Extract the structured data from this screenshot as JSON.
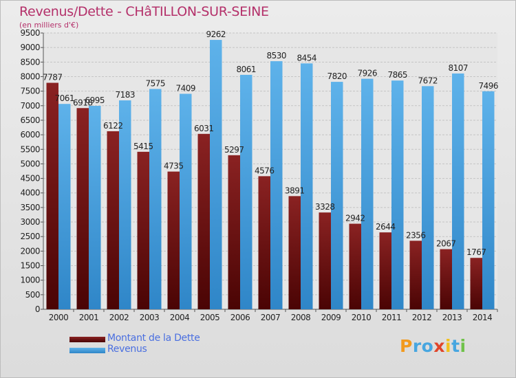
{
  "title": "Revenus/Dette - CHâTILLON-SUR-SEINE",
  "subtitle": "(en milliers d'€)",
  "legend": [
    {
      "label": "Montant de la Dette",
      "color": "#7a1414"
    },
    {
      "label": "Revenus",
      "color": "#4ea3e2"
    }
  ],
  "logo": {
    "text": "Proxiti",
    "letters": [
      "P",
      "r",
      "o",
      "x",
      "i",
      "t",
      "i"
    ],
    "colors": [
      "#f29a1e",
      "#47a6e0",
      "#47a6e0",
      "#e0452a",
      "#f2c01e",
      "#47a6e0",
      "#6fc24a"
    ]
  },
  "chart_data": {
    "type": "bar",
    "categories": [
      "2000",
      "2001",
      "2002",
      "2003",
      "2004",
      "2005",
      "2006",
      "2007",
      "2008",
      "2009",
      "2010",
      "2011",
      "2012",
      "2013",
      "2014"
    ],
    "series": [
      {
        "name": "Montant de la Dette",
        "values": [
          7787,
          6918,
          6122,
          5415,
          4735,
          6031,
          5297,
          4576,
          3891,
          3328,
          2942,
          2644,
          2356,
          2067,
          1767
        ],
        "labels": [
          "7787",
          "6918",
          "6122",
          "5415",
          "4735",
          "6031",
          "5297",
          "4576",
          "3891",
          "3328",
          "2942",
          "2644",
          "2356",
          "2067",
          "1767"
        ]
      },
      {
        "name": "Revenus",
        "values": [
          7061,
          6995,
          7183,
          7575,
          7409,
          9262,
          8061,
          8530,
          8454,
          7820,
          7926,
          7865,
          7672,
          8107,
          7496
        ],
        "labels": [
          "7061",
          "6995",
          "7183",
          "7575",
          "7409",
          "9262",
          "8061",
          "8530",
          "8454",
          "7820",
          "7926",
          "7865",
          "7672",
          "8107",
          "7496"
        ]
      }
    ],
    "ylim": [
      0,
      9500
    ],
    "yticks": [
      "0",
      "500",
      "1000",
      "1500",
      "2000",
      "2500",
      "3000",
      "3500",
      "4000",
      "4500",
      "5000",
      "5500",
      "6000",
      "6500",
      "7000",
      "7500",
      "8000",
      "8500",
      "9000",
      "9500"
    ],
    "grid": true,
    "legend_position": "bottom-left"
  }
}
